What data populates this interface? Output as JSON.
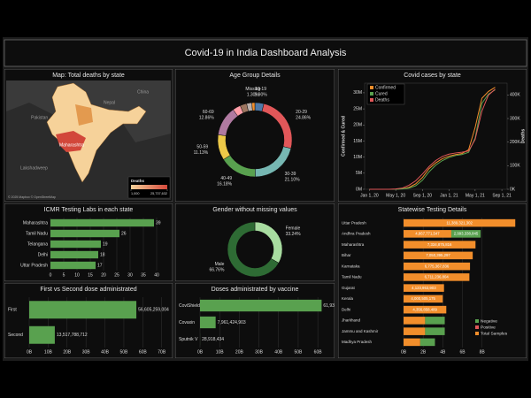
{
  "title": "Covid-19 in India Dashboard Analysis",
  "chart_data": [
    {
      "type": "map",
      "title": "Map: Total deaths by state",
      "legend_title": "Deaths",
      "legend_range": [
        {
          "value": 1000,
          "label": "1,000"
        },
        {
          "value": 25737632,
          "label": "25,737,632"
        }
      ],
      "colors": [
        "#f6d29a",
        "#d2473a"
      ],
      "places": [
        "China",
        "Pakistan",
        "Nepal",
        "Maharashtra",
        "Lakshadweep"
      ],
      "credit": "© 2025 Mapbox © OpenStreetMap"
    },
    {
      "type": "donut",
      "title": "Age Group Details",
      "categories": [
        "10-19",
        "20-29",
        "30-39",
        "40-49",
        "50-59",
        "60-69",
        null,
        null,
        null,
        "Missing"
      ],
      "values": [
        3.9,
        24.86,
        21.1,
        16.18,
        11.13,
        12.86,
        3.5,
        2.9,
        2.27,
        1.3
      ],
      "value_labels": [
        "3.90%",
        "24.86%",
        "21.10%",
        "16.18%",
        "11.13%",
        "12.86%",
        null,
        null,
        null,
        "1.30%"
      ],
      "colors": [
        "#4e79a7",
        "#e15759",
        "#76b7b2",
        "#59a14f",
        "#edc948",
        "#b07aa1",
        "#ff9da7",
        "#9c755f",
        "#bab0ac",
        "#f28e2b"
      ]
    },
    {
      "type": "line",
      "title": "Covid cases by state",
      "ylabel": "Confirmed & Cured",
      "y2label": "Deaths",
      "x": [
        "2020-01-01",
        "2020-02-01",
        "2020-03-01",
        "2020-04-01",
        "2020-05-01",
        "2020-06-01",
        "2020-07-01",
        "2020-08-01",
        "2020-09-01",
        "2020-10-01",
        "2020-11-01",
        "2020-12-01",
        "2021-01-01",
        "2021-02-01",
        "2021-03-01",
        "2021-04-01",
        "2021-05-01",
        "2021-06-01",
        "2021-07-01",
        "2021-08-01"
      ],
      "xlim": [
        "2019-12-10",
        "2021-09-25"
      ],
      "xticks": [
        {
          "value": "2020-01-01",
          "label": "Jan 1, 20"
        },
        {
          "value": "2020-05-01",
          "label": "May 1, 20"
        },
        {
          "value": "2020-09-01",
          "label": "Sep 1, 20"
        },
        {
          "value": "2021-01-01",
          "label": "Jan 1, 21"
        },
        {
          "value": "2021-05-01",
          "label": "May 1, 21"
        },
        {
          "value": "2021-09-01",
          "label": "Sep 1, 21"
        }
      ],
      "ylim": [
        0,
        33
      ],
      "yticks": [
        {
          "value": 0,
          "label": "0M"
        },
        {
          "value": 5,
          "label": "5M"
        },
        {
          "value": 10,
          "label": "10M"
        },
        {
          "value": 15,
          "label": "15M"
        },
        {
          "value": 20,
          "label": "20M"
        },
        {
          "value": 25,
          "label": "25M"
        },
        {
          "value": 30,
          "label": "30M"
        }
      ],
      "y2lim": [
        0,
        450
      ],
      "y2ticks": [
        {
          "value": 0,
          "label": "0K"
        },
        {
          "value": 100,
          "label": "100K"
        },
        {
          "value": 200,
          "label": "200K"
        },
        {
          "value": 300,
          "label": "300K"
        },
        {
          "value": 400,
          "label": "400K"
        }
      ],
      "legend": "top-left",
      "series": [
        {
          "name": "Confirmed",
          "color": "#f28e2b",
          "values": [
            0,
            0,
            0,
            0.002,
            0.035,
            0.19,
            0.59,
            1.7,
            3.7,
            6.4,
            8.2,
            9.5,
            10.3,
            10.8,
            11.1,
            12.3,
            19.2,
            28.3,
            30.4,
            31.7
          ]
        },
        {
          "name": "Cured",
          "color": "#59a14f",
          "values": [
            0,
            0,
            0,
            0,
            0.01,
            0.09,
            0.35,
            1.1,
            2.8,
            5.4,
            7.5,
            8.9,
            9.9,
            10.5,
            10.8,
            11.5,
            15.9,
            26.7,
            29.6,
            30.9
          ]
        },
        {
          "name": "Deaths",
          "color": "#e15759",
          "axis": "y2",
          "values": [
            0,
            0,
            0,
            0,
            1.2,
            5.4,
            17,
            36,
            65,
            96,
            122,
            139,
            149,
            154,
            157,
            162,
            211,
            331,
            399,
            424
          ]
        }
      ]
    },
    {
      "type": "bar",
      "title": "ICMR Testing Labs in each state",
      "data_labels": true,
      "categories": [
        "Maharashtra",
        "Tamil Nadu",
        "Telangana",
        "Delhi",
        "Uttar Pradesh"
      ],
      "values": [
        39,
        26,
        19,
        18,
        17
      ],
      "color": "#59a14f",
      "xlim": [
        0,
        42
      ],
      "xticks": [
        0,
        5,
        10,
        15,
        20,
        25,
        30,
        35,
        40
      ]
    },
    {
      "type": "donut",
      "title": "Gender without missing values",
      "categories": [
        "Female",
        "Male"
      ],
      "values": [
        33.24,
        66.76
      ],
      "value_labels": [
        "33.24%",
        "66.76%"
      ],
      "colors": [
        "#a8dca0",
        "#2e6b34"
      ]
    },
    {
      "type": "bar",
      "title": "Statewise Testing Details",
      "legend": "bottom-right",
      "categories": [
        "Uttar Pradesh",
        "Andhra Pradesh",
        "Maharashtra",
        "Bihar",
        "Karnataka",
        "Tamil Nadu",
        "Gujarat",
        "Kerala",
        "Delhi",
        "Jharkhand",
        "Jammu and Kashmir",
        "Madhya Pradesh"
      ],
      "xlim": [
        0,
        12000000000
      ],
      "xticks": [
        {
          "value": 0,
          "label": "0B"
        },
        {
          "value": 2000000000,
          "label": "2B"
        },
        {
          "value": 4000000000,
          "label": "4B"
        },
        {
          "value": 6000000000,
          "label": "6B"
        },
        {
          "value": 8000000000,
          "label": "8B"
        }
      ],
      "series": [
        {
          "name": "Total Samples",
          "color": "#f28e2b",
          "values": [
            11389321302,
            4867771547,
            7334875816,
            7050395297,
            6775367836,
            6711236804,
            4123953903,
            4000505175,
            4356858489,
            2200000000,
            2200000000,
            1700000000
          ],
          "value_labels": [
            "11,389,321,302",
            "4,867,771,547",
            "7,334,875,816",
            "7,050,395,297",
            "6,775,367,836",
            "6,711,236,804",
            "4,123,953,903",
            "4,000,505,175",
            "4,356,858,489",
            null,
            null,
            null
          ]
        },
        {
          "name": "Positive",
          "color": "#e15759",
          "values": [
            0,
            0,
            0,
            0,
            0,
            0,
            0,
            0,
            0,
            0,
            0,
            0
          ]
        },
        {
          "name": "Negative",
          "color": "#59a14f",
          "values": [
            0,
            2993338845,
            0,
            0,
            0,
            0,
            0,
            0,
            0,
            2000000000,
            2000000000,
            1500000000
          ],
          "value_labels": [
            null,
            "2,993,338,845",
            null,
            null,
            null,
            null,
            null,
            null,
            null,
            null,
            null,
            null
          ]
        }
      ]
    },
    {
      "type": "bar",
      "title": "First vs Second dose administrated",
      "categories": [
        "First",
        "Second"
      ],
      "values": [
        56605259004,
        13517788712
      ],
      "value_labels": [
        "56,605,259,004",
        "13,517,788,712"
      ],
      "color": "#59a14f",
      "xlim": [
        0,
        72000000000
      ],
      "xticks": [
        {
          "value": 0,
          "label": "0B"
        },
        {
          "value": 10000000000,
          "label": "10B"
        },
        {
          "value": 20000000000,
          "label": "20B"
        },
        {
          "value": 30000000000,
          "label": "30B"
        },
        {
          "value": 40000000000,
          "label": "40B"
        },
        {
          "value": 50000000000,
          "label": "50B"
        },
        {
          "value": 60000000000,
          "label": "60B"
        },
        {
          "value": 70000000000,
          "label": "70B"
        }
      ]
    },
    {
      "type": "bar",
      "title": "Doses administrated by vaccine",
      "categories": [
        "CoviShield",
        "Covaxin",
        "Sputnik V"
      ],
      "values": [
        61932459831,
        7961424903,
        28918434
      ],
      "value_labels": [
        "61,932,459,831",
        "7,961,424,903",
        "28,918,434"
      ],
      "color": "#59a14f",
      "xlim": [
        0,
        64000000000
      ],
      "xticks": [
        {
          "value": 0,
          "label": "0B"
        },
        {
          "value": 10000000000,
          "label": "10B"
        },
        {
          "value": 20000000000,
          "label": "20B"
        },
        {
          "value": 30000000000,
          "label": "30B"
        },
        {
          "value": 40000000000,
          "label": "40B"
        },
        {
          "value": 50000000000,
          "label": "50B"
        },
        {
          "value": 60000000000,
          "label": "60B"
        }
      ]
    }
  ]
}
